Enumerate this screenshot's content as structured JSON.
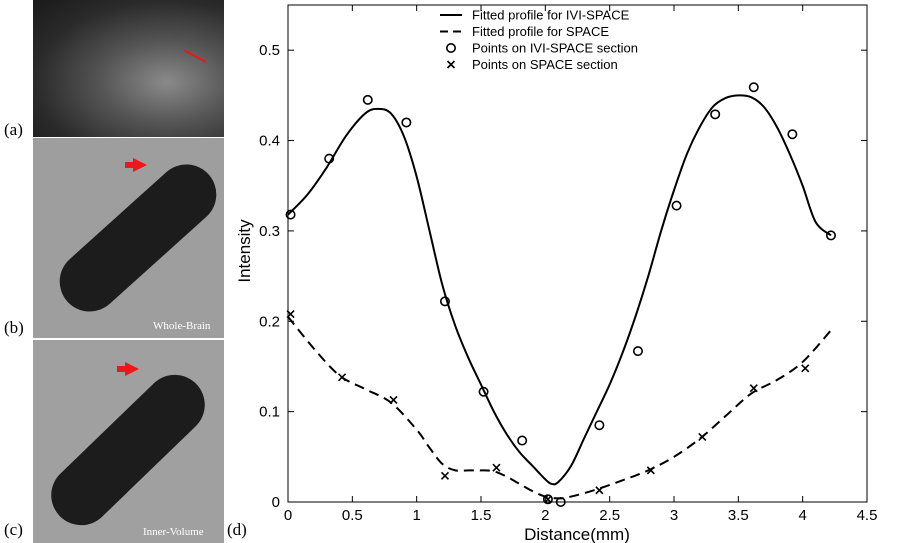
{
  "panels": {
    "a_label": "(a)",
    "b_label": "(b)",
    "c_label": "(c)",
    "d_label": "(d)",
    "b_caption": "Whole-Brain",
    "c_caption": "Inner-Volume"
  },
  "colors": {
    "arrow": "#e8181b",
    "line": "#000000"
  },
  "chart_data": {
    "type": "line",
    "xlabel": "Distance(mm)",
    "ylabel": "Intensity",
    "xlim": [
      0,
      4.5
    ],
    "ylim": [
      0,
      0.55
    ],
    "x_ticks": [
      "0",
      "0.5",
      "1",
      "1.5",
      "2",
      "2.5",
      "3",
      "3.5",
      "4",
      "4.5"
    ],
    "y_ticks": [
      "0",
      "0.1",
      "0.2",
      "0.3",
      "0.4",
      "0.5"
    ],
    "grid": false,
    "legend_position": "top",
    "series": [
      {
        "name": "Fitted profile for IVI-SPACE",
        "style": "solid",
        "x": [
          0,
          0.15,
          0.3,
          0.45,
          0.6,
          0.7,
          0.8,
          0.9,
          1.0,
          1.1,
          1.2,
          1.3,
          1.4,
          1.5,
          1.6,
          1.7,
          1.8,
          1.9,
          2.0,
          2.05,
          2.1,
          2.2,
          2.3,
          2.4,
          2.5,
          2.6,
          2.7,
          2.8,
          2.9,
          3.0,
          3.1,
          3.2,
          3.3,
          3.4,
          3.5,
          3.6,
          3.7,
          3.8,
          3.9,
          4.0,
          4.1,
          4.22
        ],
        "y": [
          0.318,
          0.34,
          0.37,
          0.405,
          0.43,
          0.435,
          0.43,
          0.405,
          0.36,
          0.3,
          0.24,
          0.195,
          0.16,
          0.13,
          0.1,
          0.075,
          0.055,
          0.04,
          0.025,
          0.02,
          0.022,
          0.04,
          0.07,
          0.1,
          0.13,
          0.165,
          0.205,
          0.25,
          0.3,
          0.345,
          0.385,
          0.415,
          0.437,
          0.447,
          0.45,
          0.448,
          0.437,
          0.415,
          0.385,
          0.35,
          0.31,
          0.295
        ]
      },
      {
        "name": "Fitted profile for SPACE",
        "style": "dashed",
        "x": [
          0,
          0.2,
          0.4,
          0.6,
          0.8,
          1.0,
          1.1,
          1.2,
          1.3,
          1.4,
          1.5,
          1.6,
          1.7,
          1.8,
          1.9,
          2.0,
          2.1,
          2.2,
          2.4,
          2.6,
          2.8,
          3.0,
          3.2,
          3.4,
          3.6,
          3.8,
          4.0,
          4.22
        ],
        "y": [
          0.205,
          0.17,
          0.14,
          0.125,
          0.11,
          0.08,
          0.06,
          0.042,
          0.035,
          0.035,
          0.035,
          0.034,
          0.028,
          0.02,
          0.012,
          0.006,
          0.004,
          0.006,
          0.014,
          0.024,
          0.035,
          0.05,
          0.07,
          0.095,
          0.12,
          0.135,
          0.155,
          0.19
        ]
      },
      {
        "name": "Points on IVI-SPACE section",
        "style": "circle-markers",
        "x": [
          0.02,
          0.32,
          0.62,
          0.92,
          1.22,
          1.52,
          1.82,
          2.02,
          2.12,
          2.42,
          2.72,
          3.02,
          3.32,
          3.62,
          3.92,
          4.22
        ],
        "y": [
          0.318,
          0.38,
          0.445,
          0.42,
          0.222,
          0.122,
          0.068,
          0.003,
          0.0,
          0.085,
          0.167,
          0.328,
          0.429,
          0.459,
          0.407,
          0.295
        ]
      },
      {
        "name": "Points on SPACE section",
        "style": "x-markers",
        "x": [
          0.02,
          0.42,
          0.82,
          1.22,
          1.62,
          2.02,
          2.42,
          2.82,
          3.22,
          3.62,
          4.02
        ],
        "y": [
          0.208,
          0.138,
          0.113,
          0.029,
          0.038,
          0.003,
          0.013,
          0.035,
          0.072,
          0.126,
          0.148
        ]
      }
    ]
  }
}
